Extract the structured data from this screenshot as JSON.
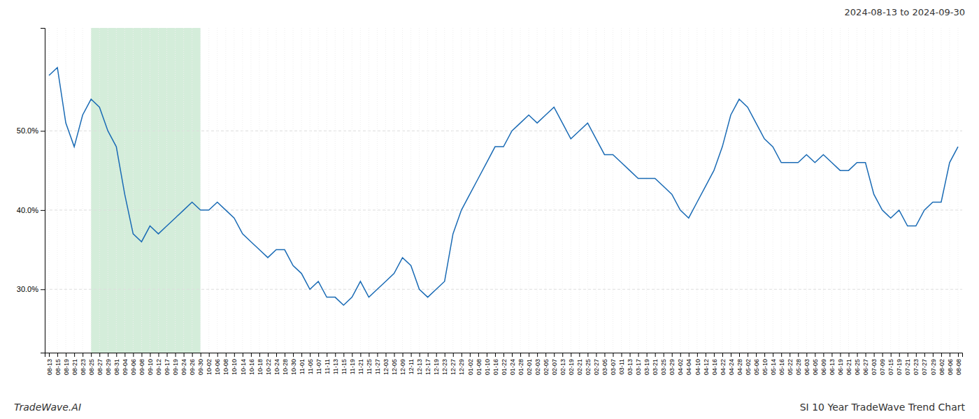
{
  "chart_data": {
    "type": "line",
    "title": "SI 10 Year TradeWave Trend Chart",
    "subtitle": "2024-08-13 to 2024-09-30",
    "annotations": [
      "TradeWave.AI"
    ],
    "categories": [
      "08-13",
      "08-15",
      "08-19",
      "08-21",
      "08-23",
      "08-25",
      "08-27",
      "08-29",
      "08-31",
      "09-04",
      "09-06",
      "09-08",
      "09-10",
      "09-12",
      "09-17",
      "09-19",
      "09-24",
      "09-26",
      "09-30",
      "10-02",
      "10-06",
      "10-08",
      "10-10",
      "10-14",
      "10-16",
      "10-18",
      "10-22",
      "10-24",
      "10-28",
      "10-30",
      "11-01",
      "11-05",
      "11-07",
      "11-11",
      "11-13",
      "11-15",
      "11-19",
      "11-21",
      "11-25",
      "11-27",
      "12-03",
      "12-05",
      "12-09",
      "12-11",
      "12-13",
      "12-17",
      "12-19",
      "12-23",
      "12-27",
      "12-29",
      "01-02",
      "01-08",
      "01-10",
      "01-16",
      "01-22",
      "01-24",
      "01-28",
      "02-01",
      "02-03",
      "02-05",
      "02-07",
      "02-13",
      "02-19",
      "02-21",
      "02-25",
      "02-27",
      "03-05",
      "03-07",
      "03-11",
      "03-13",
      "03-17",
      "03-19",
      "03-21",
      "03-25",
      "03-29",
      "04-02",
      "04-04",
      "04-10",
      "04-12",
      "04-16",
      "04-22",
      "04-24",
      "04-28",
      "05-02",
      "05-06",
      "05-10",
      "05-14",
      "05-16",
      "05-22",
      "05-28",
      "06-03",
      "06-05",
      "06-09",
      "06-13",
      "06-19",
      "06-21",
      "06-25",
      "06-27",
      "07-03",
      "07-09",
      "07-15",
      "07-19",
      "07-21",
      "07-23",
      "07-27",
      "07-29",
      "08-02",
      "08-06",
      "08-08"
    ],
    "values": [
      57,
      58,
      51,
      48,
      52,
      54,
      53,
      50,
      48,
      42,
      37,
      36,
      38,
      37,
      38,
      39,
      40,
      41,
      40,
      40,
      41,
      40,
      39,
      37,
      36,
      35,
      34,
      35,
      35,
      33,
      32,
      30,
      31,
      29,
      29,
      28,
      29,
      31,
      29,
      30,
      31,
      32,
      34,
      33,
      30,
      29,
      30,
      31,
      37,
      40,
      42,
      44,
      46,
      48,
      48,
      50,
      51,
      52,
      51,
      52,
      53,
      51,
      49,
      50,
      51,
      49,
      47,
      47,
      46,
      45,
      44,
      44,
      44,
      43,
      42,
      40,
      39,
      41,
      43,
      45,
      48,
      52,
      54,
      53,
      51,
      49,
      48,
      46,
      46,
      46,
      47,
      46,
      47,
      46,
      45,
      45,
      46,
      46,
      42,
      40,
      39,
      40,
      38,
      38,
      40,
      41,
      41,
      46,
      48
    ],
    "color": "#1a6bb5",
    "highlight": {
      "start": "08-25",
      "end": "09-30",
      "color": "#d4edda"
    },
    "ylim": [
      22,
      63
    ],
    "yticks": [
      {
        "value": 30,
        "label": "30.0%"
      },
      {
        "value": 40,
        "label": "40.0%"
      },
      {
        "value": 50,
        "label": "50.0%"
      }
    ],
    "grid": true
  }
}
